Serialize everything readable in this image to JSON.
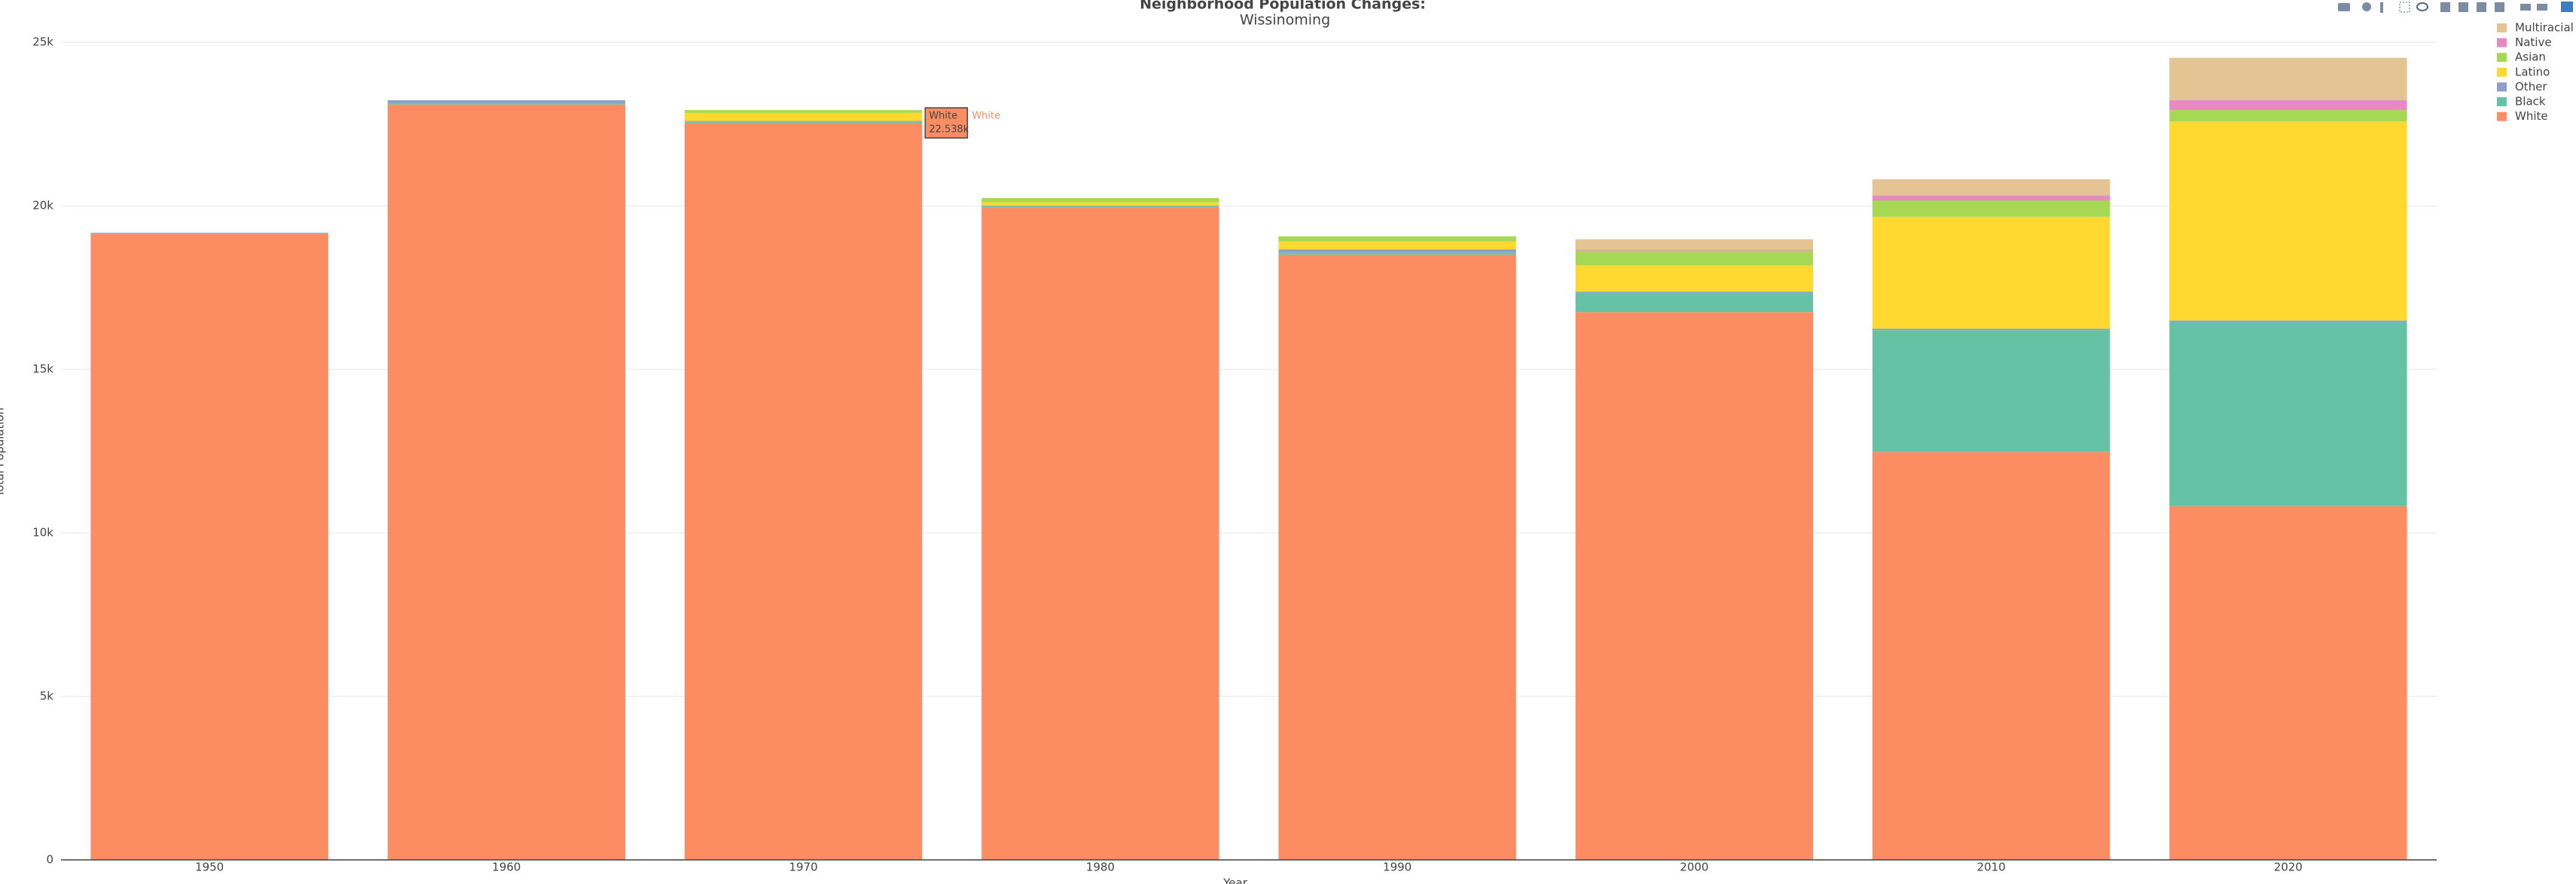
{
  "chart_data": {
    "type": "stacked_bar",
    "title": "Neighborhood Population Changes:",
    "subtitle": "Wissinoming",
    "x_label": "Year",
    "y_label": "Total Population",
    "categories": [
      "1950",
      "1960",
      "1970",
      "1980",
      "1990",
      "2000",
      "2010",
      "2020"
    ],
    "series": [
      {
        "name": "White",
        "color": "#fc8d62",
        "values": [
          19150,
          23100,
          22538,
          19950,
          18510,
          16750,
          12475,
          10815
        ]
      },
      {
        "name": "Black",
        "color": "#66c2a5",
        "values": [
          20,
          30,
          40,
          40,
          60,
          600,
          3720,
          5630
        ]
      },
      {
        "name": "Other",
        "color": "#8da0cb",
        "values": [
          10,
          100,
          20,
          20,
          100,
          30,
          50,
          50
        ]
      },
      {
        "name": "Latino",
        "color": "#ffd92f",
        "values": [
          0,
          0,
          250,
          100,
          250,
          800,
          3420,
          6085
        ]
      },
      {
        "name": "Asian",
        "color": "#a6d854",
        "values": [
          0,
          0,
          80,
          130,
          150,
          450,
          500,
          350
        ]
      },
      {
        "name": "Native",
        "color": "#e78ac3",
        "values": [
          0,
          0,
          0,
          0,
          0,
          30,
          150,
          300
        ]
      },
      {
        "name": "Multiracial",
        "color": "#e5c494",
        "values": [
          0,
          0,
          0,
          0,
          0,
          320,
          500,
          1300
        ]
      }
    ],
    "ylim": [
      0,
      25789
    ],
    "yticks": [
      0,
      {
        "value": 5000,
        "label": "5k"
      },
      {
        "value": 10000,
        "label": "10k"
      },
      {
        "value": 15000,
        "label": "15k"
      },
      {
        "value": 20000,
        "label": "20k"
      },
      {
        "value": 25000,
        "label": "25k"
      }
    ],
    "grid": true,
    "legend": "top-right",
    "hover": {
      "name": "White",
      "x": "1970",
      "label": "22.538k"
    }
  }
}
